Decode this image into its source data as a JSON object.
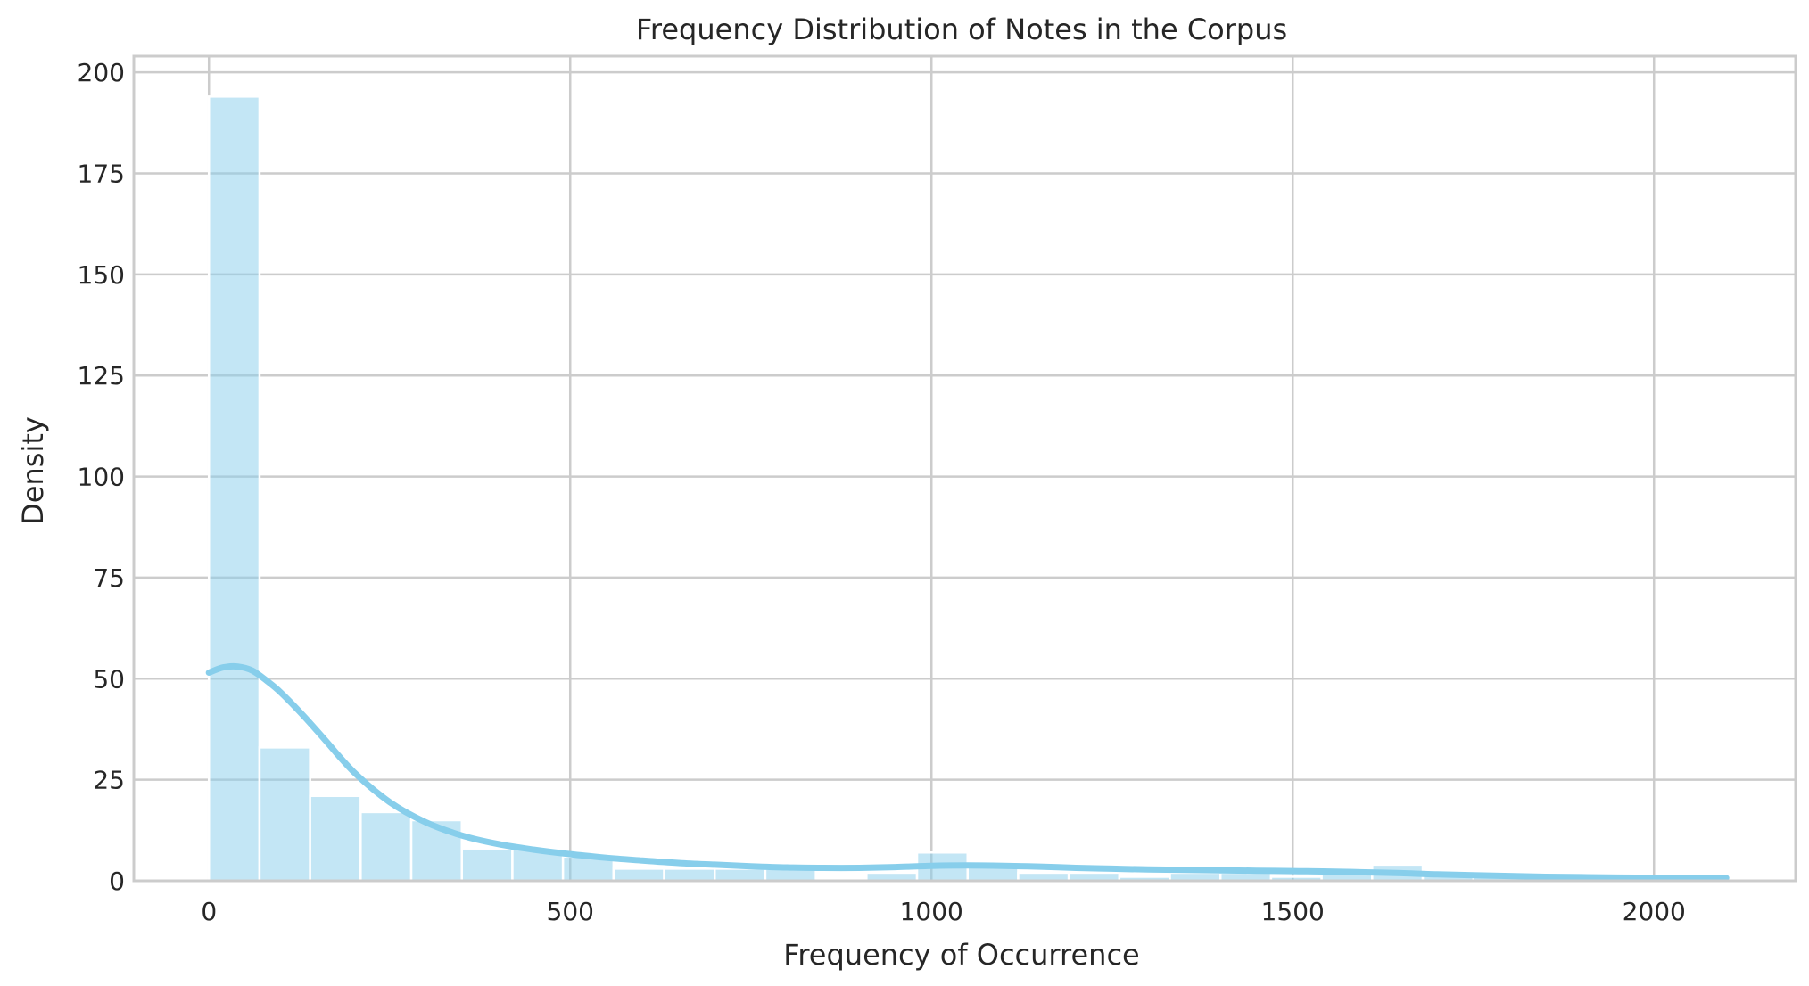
{
  "chart_data": {
    "type": "bar",
    "subtype": "histogram-with-kde",
    "title": "Frequency Distribution of Notes in the Corpus",
    "xlabel": "Frequency of Occurrence",
    "ylabel": "Density",
    "xlim": [
      -104,
      2196
    ],
    "ylim": [
      0,
      204
    ],
    "xticks": [
      0,
      500,
      1000,
      1500,
      2000
    ],
    "yticks": [
      0,
      25,
      50,
      75,
      100,
      125,
      150,
      175,
      200
    ],
    "grid": true,
    "legend": "none",
    "colors": {
      "bar_fill": "#87ceeb",
      "bar_opacity": 0.5,
      "kde_line": "#87ceeb",
      "grid": "#cccccc",
      "frame": "#cccccc",
      "text": "#262626"
    },
    "bins": {
      "start": 0,
      "width": 70,
      "values": [
        194,
        33,
        21,
        17,
        15,
        8,
        8,
        6,
        3,
        3,
        3,
        3,
        0,
        2,
        7,
        4,
        2,
        2,
        1,
        2,
        2,
        1,
        2,
        4,
        2,
        1,
        1,
        1,
        1,
        1
      ]
    },
    "kde": {
      "x": [
        0,
        20,
        40,
        60,
        80,
        100,
        130,
        160,
        200,
        250,
        300,
        350,
        400,
        450,
        500,
        550,
        600,
        650,
        700,
        750,
        800,
        850,
        900,
        950,
        1000,
        1050,
        1100,
        1150,
        1200,
        1250,
        1300,
        1350,
        1400,
        1450,
        1500,
        1550,
        1600,
        1650,
        1700,
        1750,
        1800,
        1850,
        1900,
        1950,
        2000,
        2050,
        2100
      ],
      "y": [
        51.5,
        52.8,
        53.0,
        52.0,
        49.5,
        46.5,
        41,
        35,
        27,
        19.5,
        14.5,
        11.2,
        9.1,
        7.7,
        6.6,
        5.7,
        5.0,
        4.4,
        4.0,
        3.6,
        3.3,
        3.2,
        3.2,
        3.4,
        3.7,
        3.8,
        3.7,
        3.5,
        3.2,
        3.0,
        2.8,
        2.7,
        2.6,
        2.5,
        2.4,
        2.3,
        2.1,
        1.9,
        1.6,
        1.4,
        1.2,
        1.0,
        0.9,
        0.8,
        0.75,
        0.7,
        0.7
      ]
    }
  }
}
